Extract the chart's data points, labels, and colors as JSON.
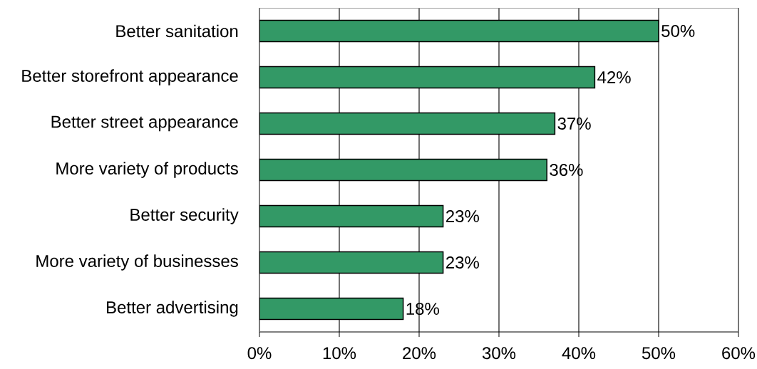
{
  "chart_data": {
    "type": "bar",
    "orientation": "horizontal",
    "categories": [
      "Better sanitation",
      "Better storefront appearance",
      "Better street appearance",
      "More variety of products",
      "Better security",
      "More variety of businesses",
      "Better advertising"
    ],
    "values": [
      50,
      42,
      37,
      36,
      23,
      23,
      18
    ],
    "value_labels": [
      "50%",
      "42%",
      "37%",
      "36%",
      "23%",
      "23%",
      "18%"
    ],
    "color": "#339966",
    "xlim": [
      0,
      60
    ],
    "xticks": [
      {
        "value": 0,
        "label": "0%"
      },
      {
        "value": 10,
        "label": "10%"
      },
      {
        "value": 20,
        "label": "20%"
      },
      {
        "value": 30,
        "label": "30%"
      },
      {
        "value": 40,
        "label": "40%"
      },
      {
        "value": 50,
        "label": "50%"
      },
      {
        "value": 60,
        "label": "60%"
      }
    ],
    "grid": "x"
  }
}
